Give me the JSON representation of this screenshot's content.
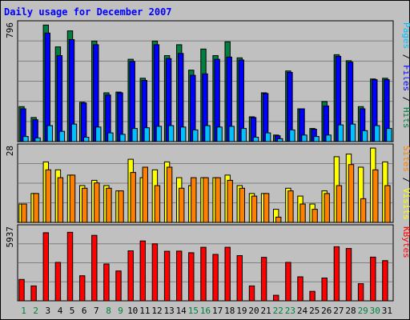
{
  "chart_data": [
    {
      "type": "bar",
      "title": "Daily usage for December 2007",
      "categories": [
        "1",
        "2",
        "3",
        "4",
        "5",
        "6",
        "7",
        "8",
        "9",
        "10",
        "11",
        "12",
        "13",
        "14",
        "15",
        "16",
        "17",
        "18",
        "19",
        "20",
        "21",
        "22",
        "23",
        "24",
        "25",
        "26",
        "27",
        "28",
        "29",
        "30",
        "31"
      ],
      "weekend_days": [
        "1",
        "2",
        "8",
        "9",
        "15",
        "16",
        "22",
        "23",
        "29",
        "30"
      ],
      "y_max_label": "796",
      "ylim": [
        0,
        796
      ],
      "ylabel_parts": [
        {
          "text": "Pages",
          "color": "#00c0ff"
        },
        {
          "text": " / ",
          "color": "#000000"
        },
        {
          "text": "Files",
          "color": "#0000ff"
        },
        {
          "text": " / ",
          "color": "#000000"
        },
        {
          "text": "Hits",
          "color": "#008040"
        }
      ],
      "series": [
        {
          "name": "Hits",
          "color": "#008040",
          "values": [
            240,
            165,
            800,
            650,
            760,
            270,
            690,
            335,
            340,
            565,
            435,
            690,
            590,
            665,
            490,
            635,
            590,
            685,
            575,
            170,
            335,
            45,
            485,
            225,
            90,
            275,
            596,
            555,
            240,
            430,
            435
          ]
        },
        {
          "name": "Files",
          "color": "#0000ff",
          "values": [
            225,
            150,
            745,
            590,
            700,
            265,
            665,
            320,
            335,
            550,
            420,
            665,
            570,
            605,
            455,
            465,
            565,
            580,
            560,
            165,
            330,
            40,
            475,
            225,
            85,
            245,
            585,
            545,
            225,
            425,
            425
          ]
        },
        {
          "name": "Pages",
          "color": "#00c0ff",
          "values": [
            35,
            25,
            110,
            70,
            120,
            30,
            100,
            60,
            50,
            90,
            95,
            105,
            110,
            100,
            80,
            110,
            100,
            105,
            90,
            30,
            60,
            20,
            80,
            45,
            35,
            45,
            115,
            120,
            75,
            110,
            90
          ]
        }
      ]
    },
    {
      "type": "bar",
      "categories": [
        "1",
        "2",
        "3",
        "4",
        "5",
        "6",
        "7",
        "8",
        "9",
        "10",
        "11",
        "12",
        "13",
        "14",
        "15",
        "16",
        "17",
        "18",
        "19",
        "20",
        "21",
        "22",
        "23",
        "24",
        "25",
        "26",
        "27",
        "28",
        "29",
        "30",
        "31"
      ],
      "y_max_label": "28",
      "ylim": [
        0,
        28
      ],
      "ylabel_parts": [
        {
          "text": "Sites",
          "color": "#ff8000"
        },
        {
          "text": " / ",
          "color": "#000000"
        },
        {
          "text": "Visits",
          "color": "#ffff00"
        }
      ],
      "series": [
        {
          "name": "Visits",
          "color": "#ffff00",
          "values": [
            7,
            11,
            23,
            20,
            18,
            14,
            16,
            14,
            12,
            24,
            17,
            20,
            23,
            17,
            14,
            17,
            17,
            18,
            14,
            11,
            11,
            5,
            13,
            10,
            7,
            12,
            25,
            26,
            21,
            29,
            23
          ]
        },
        {
          "name": "Sites",
          "color": "#ff8000",
          "values": [
            7,
            11,
            20,
            17,
            18,
            13,
            15,
            13,
            12,
            19,
            21,
            14,
            21,
            13,
            17,
            17,
            17,
            16,
            13,
            10,
            11,
            2,
            12,
            7,
            5,
            11,
            14,
            22,
            9,
            20,
            14
          ]
        }
      ]
    },
    {
      "type": "bar",
      "categories": [
        "1",
        "2",
        "3",
        "4",
        "5",
        "6",
        "7",
        "8",
        "9",
        "10",
        "11",
        "12",
        "13",
        "14",
        "15",
        "16",
        "17",
        "18",
        "19",
        "20",
        "21",
        "22",
        "23",
        "24",
        "25",
        "26",
        "27",
        "28",
        "29",
        "30",
        "31"
      ],
      "y_max_label": "5937",
      "ylim": [
        0,
        5937
      ],
      "ylabel_parts": [
        {
          "text": "KBytes",
          "color": "#ff0000"
        }
      ],
      "series": [
        {
          "name": "KBytes",
          "color": "#ff0000",
          "values": [
            1780,
            1240,
            5680,
            3200,
            5710,
            2090,
            5460,
            3070,
            2490,
            4170,
            4990,
            4750,
            4130,
            4140,
            4010,
            4460,
            3870,
            4460,
            3770,
            1240,
            3620,
            460,
            3200,
            2000,
            790,
            1900,
            4510,
            4360,
            1430,
            3640,
            3350
          ]
        }
      ]
    }
  ]
}
